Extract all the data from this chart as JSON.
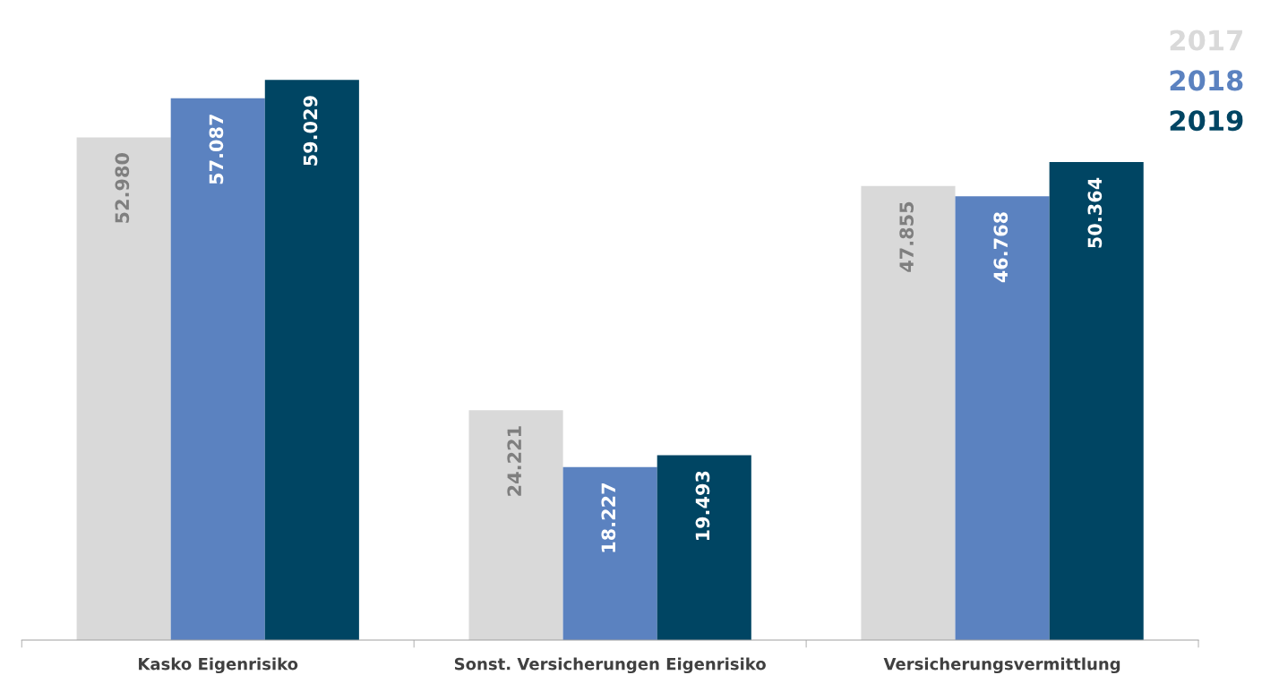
{
  "chart_data": {
    "type": "bar",
    "categories": [
      "Kasko Eigenrisiko",
      "Sonst. Versicherungen Eigenrisiko",
      "Versicherungsvermittlung"
    ],
    "series": [
      {
        "name": "2017",
        "color": "#d9d9d9",
        "values": [
          52980,
          24221,
          47855
        ],
        "value_labels": [
          "52.980",
          "24.221",
          "47.855"
        ]
      },
      {
        "name": "2018",
        "color": "#5b82c0",
        "values": [
          57087,
          18227,
          46768
        ],
        "value_labels": [
          "57.087",
          "18.227",
          "46.768"
        ]
      },
      {
        "name": "2019",
        "color": "#004563",
        "values": [
          59029,
          19493,
          50364
        ],
        "value_labels": [
          "59.029",
          "19.493",
          "50.364"
        ]
      }
    ],
    "legend": "top right",
    "grid": false
  }
}
